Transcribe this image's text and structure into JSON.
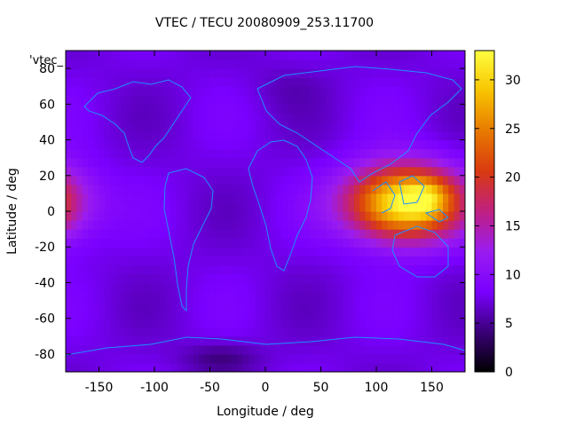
{
  "chart_data": {
    "type": "heatmap",
    "title": "VTEC / TECU 20080909_253.11700",
    "xlabel": "Longitude / deg",
    "ylabel": "Latitude / deg",
    "key_label": "'vtec_",
    "xlim": [
      -180,
      180
    ],
    "ylim": [
      -90,
      90
    ],
    "x_ticks": [
      -150,
      -100,
      -50,
      0,
      50,
      100,
      150
    ],
    "y_ticks": [
      -80,
      -60,
      -40,
      -20,
      0,
      20,
      40,
      60,
      80
    ],
    "colorbar": {
      "range": [
        0,
        33
      ],
      "ticks": [
        0,
        5,
        10,
        15,
        20,
        25,
        30
      ],
      "colormap": [
        "#000000",
        "#3a0078",
        "#7a00ff",
        "#9a1cf0",
        "#c02080",
        "#d93a10",
        "#e87a00",
        "#f8c400",
        "#ffff40"
      ]
    },
    "vtec_features": [
      {
        "lon_center": 125,
        "lat_center": 5,
        "lon_halfwidth": 60,
        "lat_halfwidth": 24,
        "peak": 26
      },
      {
        "lon_center": -222,
        "lat_center": 5,
        "lon_halfwidth": 60,
        "lat_halfwidth": 24,
        "peak": 26
      },
      {
        "lon_center": 145,
        "lat_center": 8,
        "lon_halfwidth": 22,
        "lat_halfwidth": 12,
        "peak": 5
      },
      {
        "lon_center": -40,
        "lat_center": -82,
        "lon_halfwidth": 40,
        "lat_halfwidth": 10,
        "peak": -3
      },
      {
        "lon_center": 20,
        "lat_center": 70,
        "lon_halfwidth": 40,
        "lat_halfwidth": 15,
        "peak": -1
      }
    ],
    "vtec_background": 7.5,
    "coastline_color": "#1e90ff",
    "grid": false
  }
}
